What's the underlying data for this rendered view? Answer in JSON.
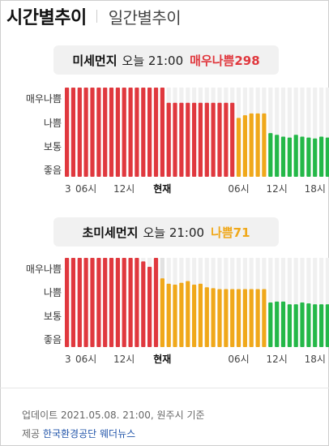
{
  "tabs": {
    "active": "시간별추이",
    "inactive": "일간별추이"
  },
  "colors": {
    "very_bad": "#e0383e",
    "bad": "#f0a81a",
    "normal": "#24b848",
    "empty": "#f0f0f0",
    "current": "#e2e2e2"
  },
  "levels": [
    "매우나쁨",
    "나쁨",
    "보통",
    "좋음"
  ],
  "now_label": "현재",
  "pm10": {
    "title": "미세먼지",
    "time": "오늘 21:00",
    "status": "매우나쁨",
    "value": "298",
    "status_color": "#e0383e",
    "x_ticks": [
      {
        "label": "3",
        "bar": 0
      },
      {
        "label": "06시",
        "bar": 3
      },
      {
        "label": "12시",
        "bar": 9
      },
      {
        "label": "현재",
        "bar": 15
      },
      {
        "label": "06시",
        "bar": 27
      },
      {
        "label": "12시",
        "bar": 33
      },
      {
        "label": "18시",
        "bar": 39
      }
    ],
    "bars": [
      {
        "t": "very_bad",
        "v": 1.0
      },
      {
        "t": "very_bad",
        "v": 1.0
      },
      {
        "t": "very_bad",
        "v": 1.0
      },
      {
        "t": "very_bad",
        "v": 1.0
      },
      {
        "t": "very_bad",
        "v": 1.0
      },
      {
        "t": "very_bad",
        "v": 1.0
      },
      {
        "t": "very_bad",
        "v": 1.0
      },
      {
        "t": "very_bad",
        "v": 1.0
      },
      {
        "t": "very_bad",
        "v": 1.0
      },
      {
        "t": "very_bad",
        "v": 1.0
      },
      {
        "t": "very_bad",
        "v": 1.0
      },
      {
        "t": "very_bad",
        "v": 1.0
      },
      {
        "t": "very_bad",
        "v": 1.0
      },
      {
        "t": "very_bad",
        "v": 1.0
      },
      {
        "t": "very_bad",
        "v": 1.0
      },
      {
        "t": "very_bad",
        "v": 1.0
      },
      {
        "t": "very_bad",
        "v": 0.83
      },
      {
        "t": "very_bad",
        "v": 0.83
      },
      {
        "t": "very_bad",
        "v": 0.83
      },
      {
        "t": "very_bad",
        "v": 0.83
      },
      {
        "t": "very_bad",
        "v": 0.83
      },
      {
        "t": "very_bad",
        "v": 0.83
      },
      {
        "t": "very_bad",
        "v": 0.83
      },
      {
        "t": "very_bad",
        "v": 0.83
      },
      {
        "t": "very_bad",
        "v": 0.83
      },
      {
        "t": "very_bad",
        "v": 0.83
      },
      {
        "t": "very_bad",
        "v": 0.83
      },
      {
        "t": "bad",
        "v": 0.66
      },
      {
        "t": "bad",
        "v": 0.69
      },
      {
        "t": "bad",
        "v": 0.71
      },
      {
        "t": "bad",
        "v": 0.71
      },
      {
        "t": "bad",
        "v": 0.71
      },
      {
        "t": "normal",
        "v": 0.49
      },
      {
        "t": "normal",
        "v": 0.47
      },
      {
        "t": "normal",
        "v": 0.45
      },
      {
        "t": "normal",
        "v": 0.44
      },
      {
        "t": "normal",
        "v": 0.47
      },
      {
        "t": "normal",
        "v": 0.45
      },
      {
        "t": "normal",
        "v": 0.44
      },
      {
        "t": "normal",
        "v": 0.43
      },
      {
        "t": "normal",
        "v": 0.45
      },
      {
        "t": "normal",
        "v": 0.44
      }
    ]
  },
  "pm25": {
    "title": "초미세먼지",
    "time": "오늘 21:00",
    "status": "나쁨",
    "value": "71",
    "status_color": "#f0a81a",
    "x_ticks": [
      {
        "label": "3",
        "bar": 0
      },
      {
        "label": "06시",
        "bar": 3
      },
      {
        "label": "12시",
        "bar": 9
      },
      {
        "label": "현재",
        "bar": 15
      },
      {
        "label": "06시",
        "bar": 27
      },
      {
        "label": "12시",
        "bar": 33
      },
      {
        "label": "18시",
        "bar": 39
      }
    ],
    "bars": [
      {
        "t": "very_bad",
        "v": 1.0
      },
      {
        "t": "very_bad",
        "v": 1.0
      },
      {
        "t": "very_bad",
        "v": 1.0
      },
      {
        "t": "very_bad",
        "v": 1.0
      },
      {
        "t": "very_bad",
        "v": 1.0
      },
      {
        "t": "very_bad",
        "v": 1.0
      },
      {
        "t": "very_bad",
        "v": 1.0
      },
      {
        "t": "very_bad",
        "v": 1.0
      },
      {
        "t": "very_bad",
        "v": 1.0
      },
      {
        "t": "very_bad",
        "v": 1.0
      },
      {
        "t": "very_bad",
        "v": 1.0
      },
      {
        "t": "very_bad",
        "v": 1.0
      },
      {
        "t": "very_bad",
        "v": 0.96
      },
      {
        "t": "very_bad",
        "v": 0.9
      },
      {
        "t": "very_bad",
        "v": 1.0
      },
      {
        "t": "bad",
        "v": 0.77
      },
      {
        "t": "bad",
        "v": 0.71
      },
      {
        "t": "bad",
        "v": 0.7
      },
      {
        "t": "bad",
        "v": 0.72
      },
      {
        "t": "bad",
        "v": 0.74
      },
      {
        "t": "bad",
        "v": 0.7
      },
      {
        "t": "bad",
        "v": 0.71
      },
      {
        "t": "bad",
        "v": 0.67
      },
      {
        "t": "bad",
        "v": 0.66
      },
      {
        "t": "bad",
        "v": 0.65
      },
      {
        "t": "bad",
        "v": 0.65
      },
      {
        "t": "bad",
        "v": 0.65
      },
      {
        "t": "bad",
        "v": 0.65
      },
      {
        "t": "bad",
        "v": 0.65
      },
      {
        "t": "bad",
        "v": 0.65
      },
      {
        "t": "bad",
        "v": 0.65
      },
      {
        "t": "bad",
        "v": 0.65
      },
      {
        "t": "normal",
        "v": 0.5
      },
      {
        "t": "normal",
        "v": 0.51
      },
      {
        "t": "normal",
        "v": 0.51
      },
      {
        "t": "normal",
        "v": 0.48
      },
      {
        "t": "normal",
        "v": 0.48
      },
      {
        "t": "normal",
        "v": 0.5
      },
      {
        "t": "normal",
        "v": 0.49
      },
      {
        "t": "normal",
        "v": 0.48
      },
      {
        "t": "normal",
        "v": 0.48
      },
      {
        "t": "normal",
        "v": 0.48
      }
    ]
  },
  "footer": {
    "update": "업데이트 2021.05.08. 21:00, 원주시 기준",
    "provided_by": "제공",
    "provider1": "한국환경공단",
    "provider2": "웨더뉴스"
  }
}
